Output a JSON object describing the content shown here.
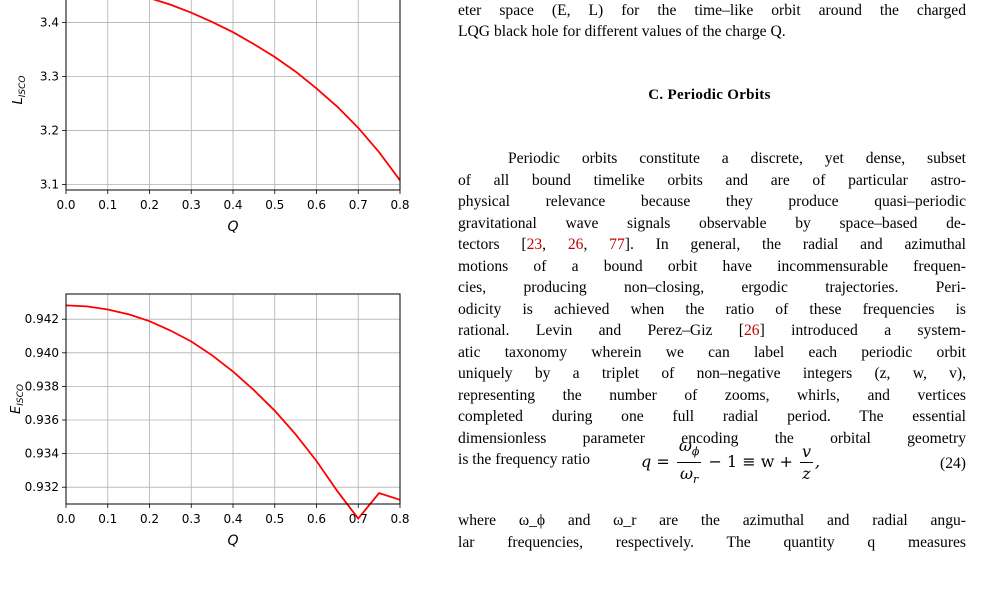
{
  "figure": {
    "top_chart": {
      "type": "line",
      "ylabel": "L_ISCO",
      "ylabel_main": "L",
      "ylabel_sub": "ISCO",
      "xlabel": "Q",
      "xlim": [
        0.0,
        0.8
      ],
      "ylim": [
        3.09,
        3.46
      ],
      "x_ticks": [
        "0.0",
        "0.1",
        "0.2",
        "0.3",
        "0.4",
        "0.5",
        "0.6",
        "0.7",
        "0.8"
      ],
      "y_ticks": [
        "3.1",
        "3.2",
        "3.3",
        "3.4"
      ],
      "y_tick_values": [
        3.1,
        3.2,
        3.3,
        3.4
      ],
      "grid": true,
      "line_color": "#ff0000",
      "series": [
        {
          "x": [
            0.2,
            0.25,
            0.3,
            0.35,
            0.4,
            0.45,
            0.5,
            0.55,
            0.6,
            0.65,
            0.7,
            0.75,
            0.8
          ],
          "y": [
            3.445,
            3.433,
            3.418,
            3.401,
            3.382,
            3.36,
            3.336,
            3.309,
            3.278,
            3.244,
            3.205,
            3.16,
            3.108
          ]
        }
      ]
    },
    "bottom_chart": {
      "type": "line",
      "ylabel": "E_ISCO",
      "ylabel_main": "E",
      "ylabel_sub": "ISCO",
      "xlabel": "Q",
      "xlim": [
        0.0,
        0.8
      ],
      "ylim": [
        0.931,
        0.9435
      ],
      "x_ticks": [
        "0.0",
        "0.1",
        "0.2",
        "0.3",
        "0.4",
        "0.5",
        "0.6",
        "0.7",
        "0.8"
      ],
      "y_ticks": [
        "0.932",
        "0.934",
        "0.936",
        "0.938",
        "0.940",
        "0.942"
      ],
      "y_tick_values": [
        0.932,
        0.934,
        0.936,
        0.938,
        0.94,
        0.942
      ],
      "grid": true,
      "line_color": "#ff0000",
      "series": [
        {
          "x": [
            0.0,
            0.05,
            0.1,
            0.15,
            0.2,
            0.25,
            0.3,
            0.35,
            0.4,
            0.45,
            0.5,
            0.55,
            0.6,
            0.65,
            0.7,
            0.75,
            0.8
          ],
          "y": [
            0.94282,
            0.94276,
            0.94258,
            0.94229,
            0.94188,
            0.94133,
            0.94067,
            0.93985,
            0.93888,
            0.93778,
            0.93655,
            0.93515,
            0.93356,
            0.93176,
            0.93013,
            0.93165,
            0.93125
          ]
        }
      ]
    }
  },
  "caption": {
    "line1": "eter space (E, L) for the time–like orbit around the charged",
    "line2": "LQG black hole for different values of the charge Q."
  },
  "section": {
    "heading": "C.   Periodic Orbits"
  },
  "paragraph": {
    "l1": "Periodic orbits constitute a discrete, yet dense, subset",
    "l2": "of all bound timelike orbits and are of particular astro-",
    "l3": "physical relevance because they produce quasi–periodic",
    "l4": "gravitational wave signals observable by space–based de-",
    "l5_pre": "tectors [",
    "cite_23": "23",
    "cite_26": "26",
    "cite_77": "77",
    "l5_post": "]. In general, the radial and azimuthal",
    "l6": "motions of a bound orbit have incommensurable frequen-",
    "l7": "cies, producing non–closing, ergodic trajectories.  Peri-",
    "l8": "odicity is achieved when the ratio of these frequencies is",
    "l9_pre": "rational. Levin and Perez–Giz [",
    "cite_26b": "26",
    "l9_post": "] introduced a system-",
    "l10": "atic taxonomy wherein we can label each periodic orbit",
    "l11": "uniquely by a triplet of non–negative integers (z, w, v),",
    "l12": "representing the number of zooms, whirls, and vertices",
    "l13": "completed during one full radial period.  The essential",
    "l14": "dimensionless parameter encoding the orbital geometry",
    "l15": "is the frequency ratio"
  },
  "equation": {
    "lhs": "q =",
    "frac1_num": "ω",
    "frac1_num_sub": "ϕ",
    "frac1_den": "ω",
    "frac1_den_sub": "r",
    "mid": "− 1 ≡ w +",
    "frac2_num": "v",
    "frac2_den": "z",
    "tail": ",",
    "number": "(24)"
  },
  "after_equation": {
    "l1": "where ω_ϕ and ω_r are the azimuthal and radial angu-",
    "l2": "lar frequencies, respectively.  The quantity q measures"
  }
}
